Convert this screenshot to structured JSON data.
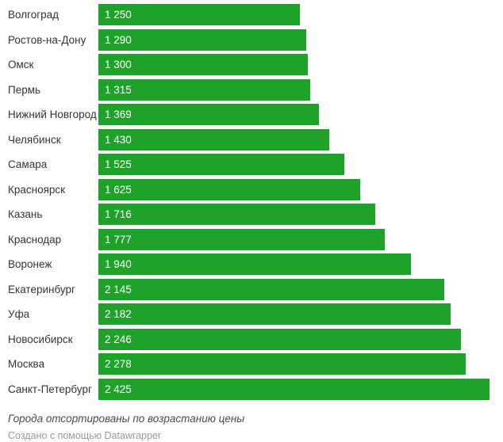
{
  "chart_data": {
    "type": "bar",
    "orientation": "horizontal",
    "title": "",
    "xlabel": "",
    "ylabel": "",
    "xlim": [
      0,
      2425
    ],
    "grid": false,
    "legend": false,
    "bar_color": "#1fa22a",
    "value_label_color": "#ffffff",
    "category_label_color": "#333333",
    "categories": [
      "Волгоград",
      "Ростов-на-Дону",
      "Омск",
      "Пермь",
      "Нижний Новгород",
      "Челябинск",
      "Самара",
      "Красноярск",
      "Казань",
      "Краснодар",
      "Воронеж",
      "Екатеринбург",
      "Уфа",
      "Новосибирск",
      "Москва",
      "Санкт-Петербург"
    ],
    "values": [
      1250,
      1290,
      1300,
      1315,
      1369,
      1430,
      1525,
      1625,
      1716,
      1777,
      1940,
      2145,
      2182,
      2246,
      2278,
      2425
    ],
    "value_labels": [
      "1 250",
      "1 290",
      "1 300",
      "1 315",
      "1 369",
      "1 430",
      "1 525",
      "1 625",
      "1 716",
      "1 777",
      "1 940",
      "2 145",
      "2 182",
      "2 246",
      "2 278",
      "2 425"
    ]
  },
  "footer": {
    "note": "Города отсортированы по возрастанию цены",
    "attribution": "Создано с помощью Datawrapper"
  }
}
